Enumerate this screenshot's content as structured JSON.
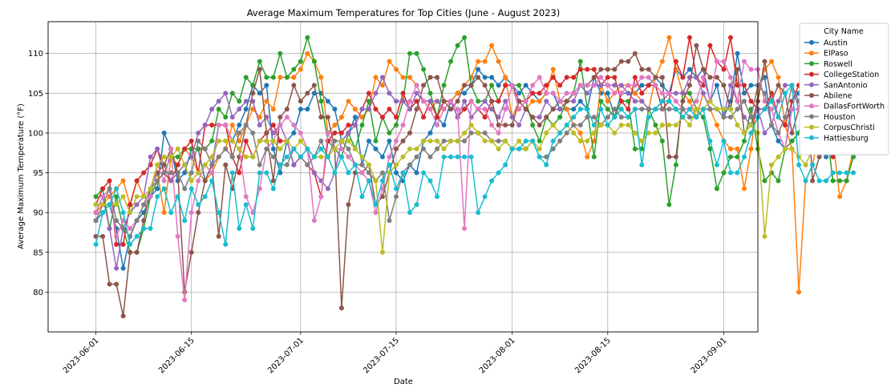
{
  "chart_data": {
    "type": "line",
    "title": "Average Maximum Temperatures for Top Cities (June - August 2023)",
    "xlabel": "Date",
    "ylabel": "Average Maximum Temperature (°F)",
    "x_start": "2023-06-01",
    "x_end": "2023-08-31",
    "xlim": [
      "2023-05-25",
      "2023-09-06"
    ],
    "ylim": [
      75,
      114
    ],
    "x_ticks": [
      "2023-06-01",
      "2023-06-15",
      "2023-07-01",
      "2023-07-15",
      "2023-08-01",
      "2023-08-15",
      "2023-09-01"
    ],
    "y_ticks": [
      80,
      85,
      90,
      95,
      100,
      105,
      110
    ],
    "grid": true,
    "legend_title": "City Name",
    "legend_position": "outside-right",
    "series": [
      {
        "name": "Austin",
        "color": "#1f77b4",
        "values": [
          89,
          90,
          91,
          88,
          83,
          87,
          89,
          90,
          92,
          93,
          100,
          98,
          94,
          95,
          98,
          98,
          94,
          96,
          101,
          101,
          99,
          101,
          103,
          106,
          105,
          106,
          98,
          95,
          99,
          100,
          103,
          103,
          105,
          105,
          104,
          103,
          99,
          100,
          102,
          96,
          99,
          98,
          97,
          99,
          95,
          94,
          96,
          95,
          99,
          100,
          102,
          101,
          104,
          105,
          105,
          106,
          108,
          107,
          107,
          106,
          107,
          106,
          105,
          106,
          105,
          104,
          105,
          105,
          103,
          103,
          103,
          104,
          103,
          107,
          105,
          105,
          102,
          105,
          105,
          105,
          106,
          106,
          107,
          106,
          105,
          108,
          107,
          108,
          107,
          108,
          104,
          106,
          102,
          104,
          110,
          105,
          106,
          106,
          107,
          101,
          99,
          98,
          104,
          105,
          107,
          103,
          99,
          97,
          98,
          98,
          100,
          100
        ]
      },
      {
        "name": "ElPaso",
        "color": "#ff7f0e",
        "values": [
          90,
          91,
          92,
          93,
          94,
          91,
          94,
          92,
          93,
          95,
          90,
          97,
          96,
          98,
          97,
          95,
          94,
          95,
          97,
          98,
          101,
          99,
          101,
          103,
          102,
          104,
          103,
          107,
          107,
          107,
          108,
          110,
          109,
          107,
          100,
          101,
          102,
          104,
          103,
          102,
          103,
          107,
          106,
          109,
          108,
          107,
          107,
          106,
          104,
          103,
          104,
          103,
          104,
          105,
          106,
          107,
          109,
          109,
          111,
          109,
          107,
          102,
          104,
          103,
          104,
          104,
          105,
          108,
          104,
          103,
          101,
          100,
          97,
          99,
          106,
          104,
          105,
          106,
          106,
          105,
          104,
          103,
          107,
          109,
          112,
          108,
          105,
          104,
          102,
          105,
          103,
          101,
          99,
          98,
          98,
          93,
          98,
          105,
          108,
          109,
          107,
          101,
          98,
          80,
          94,
          96,
          100,
          105,
          99,
          92,
          94,
          98
        ]
      },
      {
        "name": "Roswell",
        "color": "#2ca02c",
        "values": [
          92,
          93,
          88,
          92,
          88,
          85,
          85,
          88,
          92,
          94,
          95,
          97,
          97,
          98,
          98,
          98,
          98,
          99,
          103,
          102,
          105,
          104,
          107,
          106,
          109,
          107,
          107,
          110,
          107,
          108,
          109,
          112,
          109,
          104,
          99,
          98,
          97,
          100,
          98,
          101,
          104,
          99,
          102,
          100,
          101,
          104,
          110,
          110,
          108,
          105,
          102,
          106,
          109,
          111,
          112,
          106,
          104,
          104,
          106,
          104,
          106,
          106,
          106,
          104,
          101,
          99,
          102,
          101,
          102,
          104,
          105,
          109,
          103,
          97,
          104,
          103,
          102,
          104,
          104,
          98,
          98,
          103,
          101,
          99,
          91,
          96,
          105,
          105,
          103,
          102,
          98,
          93,
          95,
          97,
          97,
          99,
          103,
          98,
          94,
          95,
          94,
          98,
          99,
          100,
          104,
          102,
          105,
          101,
          94,
          94,
          94,
          97
        ]
      },
      {
        "name": "CollegeStation",
        "color": "#d62728",
        "values": [
          91,
          93,
          94,
          86,
          86,
          91,
          94,
          95,
          96,
          98,
          95,
          94,
          96,
          98,
          99,
          95,
          101,
          101,
          101,
          101,
          97,
          95,
          99,
          97,
          99,
          100,
          101,
          99,
          99,
          96,
          97,
          96,
          95,
          92,
          99,
          100,
          100,
          101,
          101,
          103,
          105,
          103,
          102,
          103,
          102,
          105,
          103,
          104,
          102,
          104,
          102,
          104,
          104,
          102,
          103,
          104,
          103,
          102,
          104,
          104,
          106,
          106,
          104,
          104,
          105,
          105,
          106,
          107,
          106,
          107,
          107,
          108,
          108,
          108,
          106,
          107,
          107,
          104,
          103,
          107,
          105,
          106,
          106,
          103,
          104,
          109,
          107,
          112,
          107,
          106,
          111,
          109,
          108,
          112,
          106,
          106,
          104,
          103,
          103,
          105,
          102,
          101,
          104,
          106,
          104,
          103,
          105,
          103,
          97,
          103,
          101,
          102
        ]
      },
      {
        "name": "SanAntonio",
        "color": "#9467bd",
        "values": [
          90,
          92,
          88,
          83,
          88,
          90,
          91,
          92,
          97,
          98,
          96,
          94,
          95,
          96,
          97,
          100,
          101,
          103,
          104,
          105,
          102,
          103,
          104,
          104,
          101,
          102,
          100,
          101,
          99,
          96,
          97,
          98,
          95,
          94,
          93,
          95,
          99,
          100,
          101,
          103,
          103,
          105,
          107,
          105,
          104,
          104,
          103,
          105,
          104,
          104,
          104,
          103,
          104,
          102,
          104,
          102,
          103,
          104,
          103,
          102,
          104,
          102,
          101,
          103,
          102,
          102,
          104,
          103,
          103,
          104,
          104,
          106,
          105,
          106,
          106,
          106,
          106,
          106,
          105,
          104,
          104,
          103,
          103,
          104,
          105,
          105,
          105,
          107,
          107,
          105,
          103,
          103,
          102,
          106,
          104,
          102,
          101,
          103,
          100,
          101,
          104,
          106,
          106,
          103,
          100,
          101,
          101,
          100
        ]
      },
      {
        "name": "Abilene",
        "color": "#8c564b",
        "values": [
          87,
          87,
          81,
          81,
          77,
          85,
          85,
          89,
          93,
          95,
          96,
          98,
          95,
          80,
          85,
          90,
          94,
          96,
          87,
          96,
          93,
          97,
          101,
          105,
          108,
          100,
          94,
          102,
          103,
          106,
          104,
          105,
          106,
          102,
          102,
          98,
          78,
          91,
          95,
          95,
          96,
          91,
          92,
          95,
          98,
          99,
          100,
          103,
          106,
          107,
          107,
          104,
          103,
          104,
          106,
          106,
          107,
          106,
          104,
          101,
          101,
          101,
          104,
          103,
          102,
          101,
          102,
          103,
          104,
          104,
          105,
          106,
          106,
          107,
          108,
          108,
          108,
          109,
          109,
          110,
          108,
          108,
          107,
          107,
          97,
          97,
          104,
          106,
          111,
          108,
          107,
          107,
          106,
          103,
          108,
          100,
          101,
          104,
          109,
          104,
          106,
          105,
          100,
          103,
          109,
          94,
          97,
          101,
          102,
          102
        ]
      },
      {
        "name": "DallasFortWorth",
        "color": "#e377c2",
        "values": [
          90,
          92,
          93,
          87,
          89,
          88,
          89,
          91,
          92,
          96,
          94,
          98,
          87,
          79,
          90,
          94,
          96,
          95,
          101,
          101,
          99,
          98,
          92,
          90,
          93,
          98,
          99,
          101,
          102,
          101,
          100,
          98,
          89,
          92,
          100,
          98,
          98,
          97,
          96,
          95,
          94,
          90,
          93,
          97,
          99,
          101,
          104,
          106,
          104,
          103,
          101,
          103,
          104,
          103,
          88,
          104,
          103,
          103,
          101,
          100,
          103,
          106,
          103,
          104,
          106,
          107,
          105,
          105,
          104,
          105,
          105,
          106,
          106,
          106,
          107,
          106,
          105,
          105,
          106,
          106,
          107,
          107,
          106,
          105,
          105,
          104,
          103,
          103,
          104,
          107,
          104,
          109,
          109,
          107,
          104,
          109,
          108,
          108,
          104,
          103,
          100,
          98,
          103,
          103,
          106,
          107,
          108,
          107,
          102,
          101,
          98,
          98
        ]
      },
      {
        "name": "Houston",
        "color": "#7f7f7f",
        "values": [
          89,
          91,
          93,
          89,
          88,
          87,
          89,
          91,
          93,
          94,
          95,
          95,
          95,
          93,
          95,
          99,
          98,
          96,
          97,
          98,
          97,
          100,
          101,
          100,
          96,
          98,
          97,
          96,
          96,
          98,
          97,
          96,
          97,
          99,
          97,
          99,
          99,
          98,
          96,
          96,
          95,
          94,
          95,
          89,
          92,
          95,
          96,
          97,
          98,
          97,
          98,
          99,
          99,
          99,
          99,
          100,
          100,
          100,
          99,
          99,
          99,
          98,
          98,
          98,
          99,
          97,
          97,
          98,
          99,
          100,
          101,
          101,
          102,
          102,
          101,
          102,
          103,
          102,
          102,
          103,
          103,
          103,
          103,
          103,
          103,
          103,
          103,
          102,
          102,
          103,
          103,
          103,
          102,
          102,
          103,
          104,
          102,
          106,
          105,
          101,
          100,
          102,
          106,
          104,
          101,
          109,
          108,
          99,
          100,
          101,
          101,
          100
        ]
      },
      {
        "name": "CorpusChristi",
        "color": "#bcbd22",
        "values": [
          91,
          91,
          91,
          91,
          92,
          90,
          92,
          92,
          93,
          96,
          97,
          97,
          98,
          96,
          94,
          95,
          96,
          97,
          99,
          99,
          99,
          98,
          97,
          97,
          99,
          99,
          99,
          98,
          99,
          98,
          99,
          98,
          97,
          97,
          97,
          98,
          99,
          99,
          98,
          97,
          96,
          94,
          85,
          95,
          96,
          97,
          98,
          98,
          99,
          99,
          99,
          98,
          99,
          99,
          100,
          101,
          100,
          99,
          99,
          98,
          99,
          98,
          99,
          98,
          99,
          98,
          100,
          101,
          100,
          101,
          100,
          99,
          99,
          100,
          101,
          101,
          100,
          101,
          101,
          100,
          99,
          100,
          100,
          101,
          101,
          101,
          102,
          101,
          103,
          103,
          104,
          103,
          103,
          103,
          101,
          100,
          101,
          100,
          87,
          96,
          97,
          98,
          98,
          97,
          96,
          98,
          99,
          101,
          98,
          98,
          99,
          99
        ]
      },
      {
        "name": "Hattiesburg",
        "color": "#17becf",
        "values": [
          86,
          90,
          91,
          93,
          90,
          86,
          87,
          88,
          88,
          92,
          93,
          90,
          92,
          89,
          93,
          91,
          92,
          94,
          90,
          86,
          95,
          88,
          91,
          88,
          95,
          95,
          93,
          96,
          97,
          98,
          97,
          98,
          97,
          98,
          97,
          95,
          97,
          95,
          96,
          92,
          94,
          91,
          94,
          96,
          93,
          95,
          90,
          91,
          95,
          94,
          92,
          97,
          97,
          97,
          97,
          97,
          90,
          92,
          94,
          95,
          96,
          98,
          98,
          99,
          99,
          97,
          96,
          99,
          100,
          101,
          102,
          103,
          103,
          101,
          103,
          101,
          102,
          103,
          102,
          103,
          96,
          102,
          103,
          104,
          104,
          103,
          102,
          103,
          102,
          103,
          99,
          96,
          99,
          95,
          95,
          97,
          100,
          102,
          103,
          104,
          102,
          105,
          106,
          96,
          94,
          96,
          94,
          94,
          95,
          95,
          95,
          95
        ]
      }
    ]
  }
}
